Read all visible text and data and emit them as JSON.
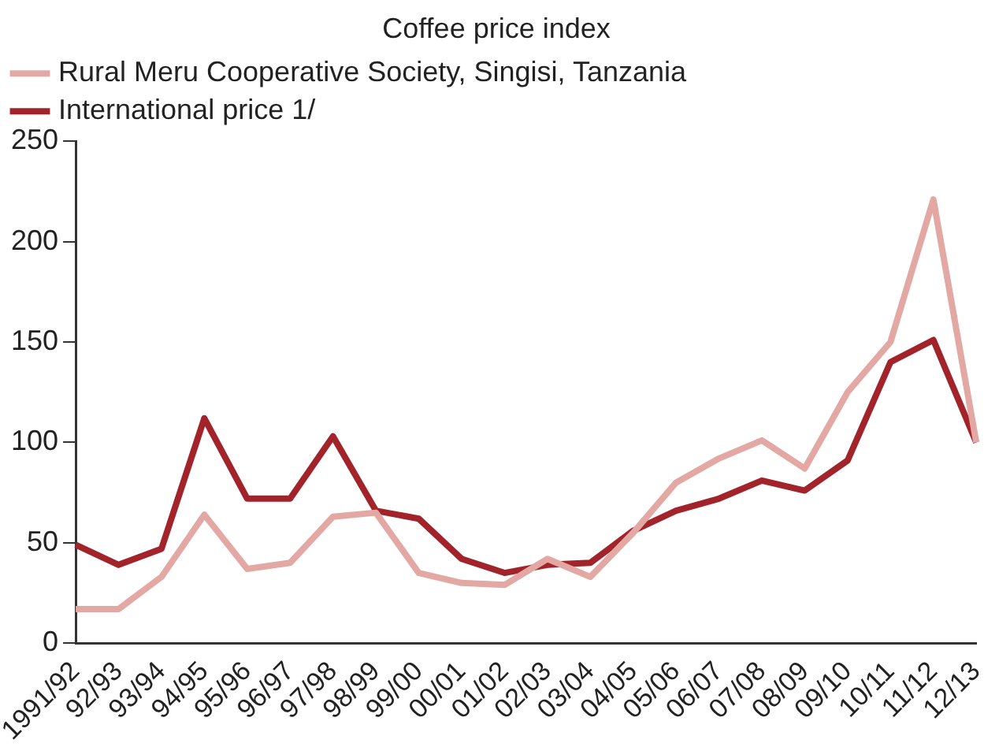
{
  "chart_data": {
    "type": "line",
    "title": "Coffee price index",
    "categories": [
      "1991/92",
      "92/93",
      "93/94",
      "94/95",
      "95/96",
      "96/97",
      "97/98",
      "98/99",
      "99/00",
      "00/01",
      "01/02",
      "02/03",
      "03/04",
      "04/05",
      "05/06",
      "06/07",
      "07/08",
      "08/09",
      "09/10",
      "10/11",
      "11/12",
      "12/13"
    ],
    "series": [
      {
        "name": "Rural Meru Cooperative Society, Singisi, Tanzania",
        "color": "#e3a8a3",
        "values": [
          17,
          17,
          33,
          64,
          37,
          40,
          63,
          65,
          35,
          30,
          29,
          42,
          33,
          55,
          80,
          92,
          101,
          87,
          125,
          150,
          221,
          100
        ]
      },
      {
        "name": "International price 1/",
        "color": "#a3232b",
        "values": [
          49,
          39,
          47,
          112,
          72,
          72,
          103,
          66,
          62,
          42,
          35,
          39,
          40,
          56,
          66,
          72,
          81,
          76,
          91,
          140,
          151,
          100
        ]
      }
    ],
    "ylim": [
      0,
      250
    ],
    "yticks": [
      0,
      50,
      100,
      150,
      200,
      250
    ],
    "grid": false,
    "legend": "top left",
    "marker": "none",
    "line_style": "solid"
  }
}
